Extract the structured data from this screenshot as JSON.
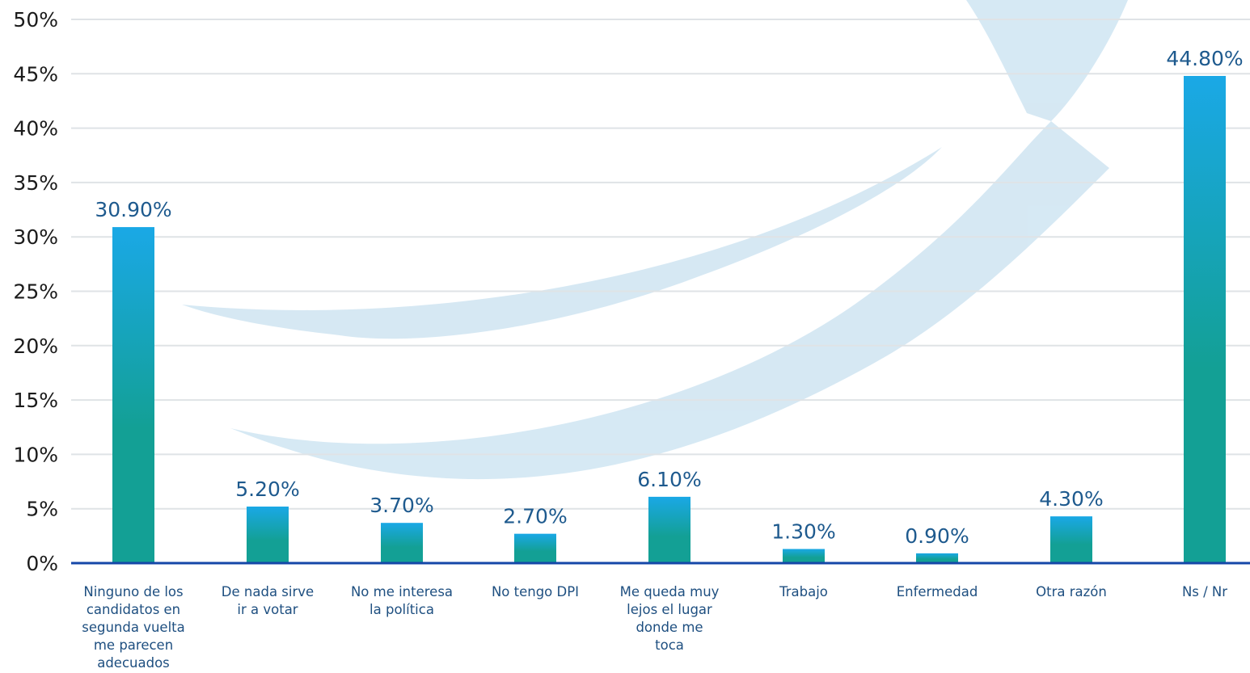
{
  "chart_data": {
    "type": "bar",
    "categories": [
      [
        "Ninguno de los",
        "candidatos en",
        "segunda vuelta",
        "me parecen",
        "adecuados"
      ],
      [
        "De nada sirve",
        "ir a votar"
      ],
      [
        "No me interesa",
        "la política"
      ],
      [
        "No tengo DPI"
      ],
      [
        "Me queda muy",
        "lejos el lugar",
        "donde me",
        "toca"
      ],
      [
        "Trabajo"
      ],
      [
        "Enfermedad"
      ],
      [
        "Otra razón"
      ],
      [
        "Ns / Nr"
      ]
    ],
    "values": [
      30.9,
      5.2,
      3.7,
      2.7,
      6.1,
      1.3,
      0.9,
      4.3,
      44.8
    ],
    "value_labels": [
      "30.90%",
      "5.20%",
      "3.70%",
      "2.70%",
      "6.10%",
      "1.30%",
      "0.90%",
      "4.30%",
      "44.80%"
    ],
    "yticks": [
      "0%",
      "5%",
      "10%",
      "15%",
      "20%",
      "25%",
      "30%",
      "35%",
      "40%",
      "45%",
      "50%"
    ],
    "ylim": [
      0,
      50
    ],
    "grid": true,
    "legend": "none",
    "colors": {
      "bar_top": "#1aa8e6",
      "bar_bottom": "#13a095",
      "value_label": "#1e5a8e",
      "category_label": "#1e4f80",
      "tick_label": "#1b1b1b",
      "gridline": "#dfe3e6",
      "baseline": "#1547a8",
      "background_swoosh": "#cfe5f2"
    }
  }
}
